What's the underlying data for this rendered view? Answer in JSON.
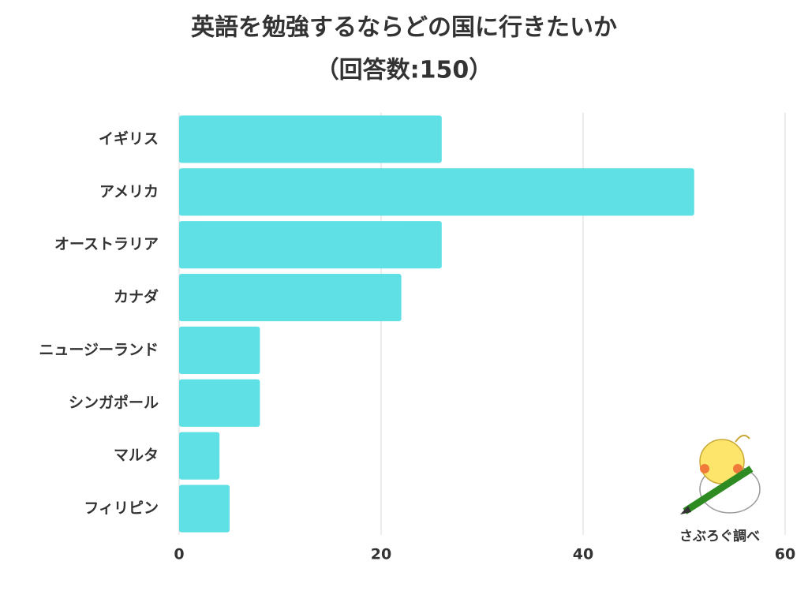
{
  "chart_data": {
    "type": "bar",
    "orientation": "horizontal",
    "title": "英語を勉強するならどの国に行きたいか",
    "subtitle": "（回答数:150）",
    "categories": [
      "イギリス",
      "アメリカ",
      "オーストラリア",
      "カナダ",
      "ニュージーランド",
      "シンガポール",
      "マルタ",
      "フィリピン"
    ],
    "values": [
      26,
      51,
      26,
      22,
      8,
      8,
      4,
      5
    ],
    "color": "#5fe0e4",
    "xlim": [
      0,
      60
    ],
    "xticks": [
      0,
      20,
      40,
      60
    ],
    "grid": true,
    "annotation": "さぶろぐ調べ"
  }
}
